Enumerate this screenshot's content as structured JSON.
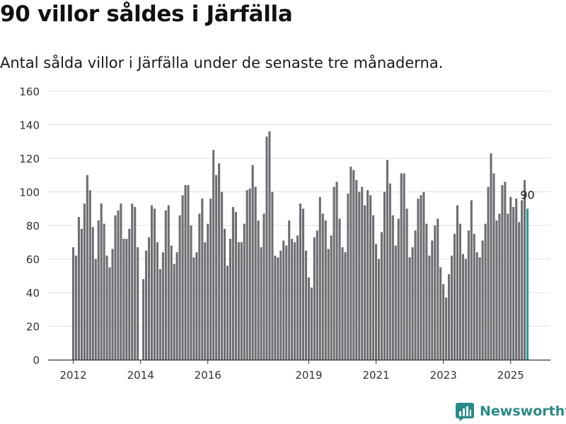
{
  "title": "90 villor såldes i Järfälla",
  "subtitle": "Antal sålda villor i Järfälla under de senaste tre månaderna.",
  "brand": {
    "name": "Newsworthy",
    "color": "#2b8a87",
    "icon": "newsworthy-logo-icon"
  },
  "colors": {
    "bar": "#6e6d72",
    "highlight": "#2a9d8f",
    "grid": "#e0e0e0",
    "axis": "#333333"
  },
  "chart_data": {
    "type": "bar",
    "title": "90 villor såldes i Järfälla",
    "subtitle": "Antal sålda villor i Järfälla under de senaste tre månaderna.",
    "xlabel": "",
    "ylabel": "",
    "ylim": [
      0,
      160
    ],
    "yticks": [
      0,
      20,
      40,
      60,
      80,
      100,
      120,
      140,
      160
    ],
    "xticks": [
      {
        "label": "2012",
        "index": 0
      },
      {
        "label": "2014",
        "index": 24
      },
      {
        "label": "2016",
        "index": 48
      },
      {
        "label": "2019",
        "index": 84
      },
      {
        "label": "2021",
        "index": 108
      },
      {
        "label": "2023",
        "index": 132
      },
      {
        "label": "2025",
        "index": 156
      }
    ],
    "grid": true,
    "legend": "none",
    "highlight_label": "90",
    "start": "2012-01",
    "series": [
      {
        "values": [
          67,
          62,
          85,
          78,
          93,
          110,
          101,
          79,
          60,
          83,
          93,
          81,
          62,
          55,
          66,
          86,
          89,
          93,
          72,
          72,
          78,
          93,
          91,
          67,
          null,
          48,
          65,
          73,
          92,
          90,
          70,
          54,
          64,
          89,
          92,
          68,
          57,
          64,
          86,
          98,
          104,
          104,
          80,
          61,
          64,
          87,
          96,
          70,
          81,
          96,
          125,
          110,
          117,
          100,
          78,
          56,
          72,
          91,
          88,
          70,
          70,
          81,
          101,
          102,
          116,
          103,
          83,
          67,
          87,
          133,
          136,
          100,
          62,
          61,
          65,
          71,
          68,
          83,
          72,
          70,
          74,
          93,
          90,
          65,
          49,
          43,
          73,
          77,
          97,
          87,
          83,
          66,
          74,
          103,
          106,
          84,
          67,
          64,
          99,
          115,
          113,
          107,
          100,
          103,
          92,
          101,
          98,
          86,
          69,
          60,
          76,
          100,
          119,
          105,
          86,
          68,
          84,
          111,
          111,
          90,
          61,
          67,
          77,
          96,
          98,
          100,
          81,
          62,
          71,
          80,
          84,
          55,
          45,
          37,
          51,
          62,
          75,
          92,
          81,
          63,
          60,
          77,
          95,
          75,
          64,
          61,
          71,
          81,
          103,
          123,
          111,
          83,
          87,
          104,
          106,
          87,
          97,
          91,
          96,
          82,
          95,
          107,
          90
        ]
      }
    ]
  }
}
